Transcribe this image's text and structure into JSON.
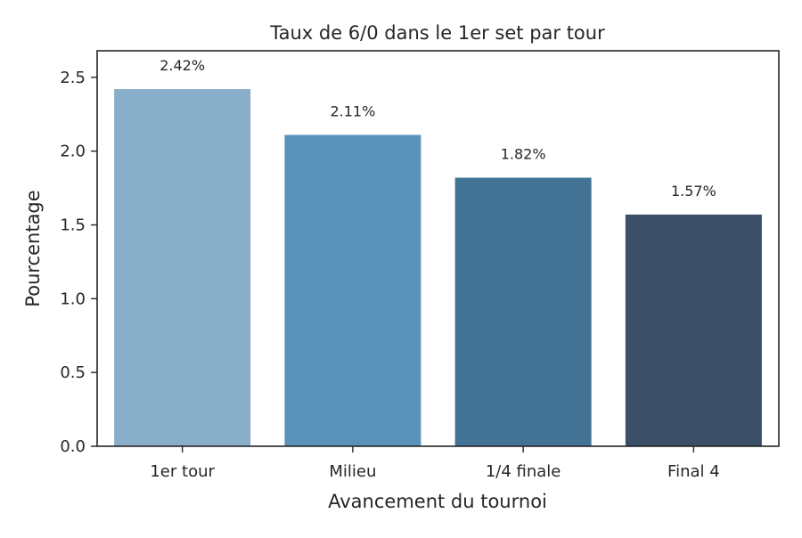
{
  "chart_data": {
    "type": "bar",
    "title": "Taux de 6/0 dans le 1er set par tour",
    "xlabel": "Avancement du tournoi",
    "ylabel": "Pourcentage",
    "categories": [
      "1er tour",
      "Milieu",
      "1/4 finale",
      "Final 4"
    ],
    "values": [
      2.42,
      2.11,
      1.82,
      1.57
    ],
    "data_labels": [
      "2.42%",
      "2.11%",
      "1.82%",
      "1.57%"
    ],
    "colors": [
      "#88aec9",
      "#5b92b9",
      "#427394",
      "#3b4f66"
    ],
    "yticks": [
      "0.0",
      "0.5",
      "1.0",
      "1.5",
      "2.0",
      "2.5"
    ],
    "ylim": [
      0,
      2.68
    ],
    "grid": false,
    "legend": "none"
  }
}
